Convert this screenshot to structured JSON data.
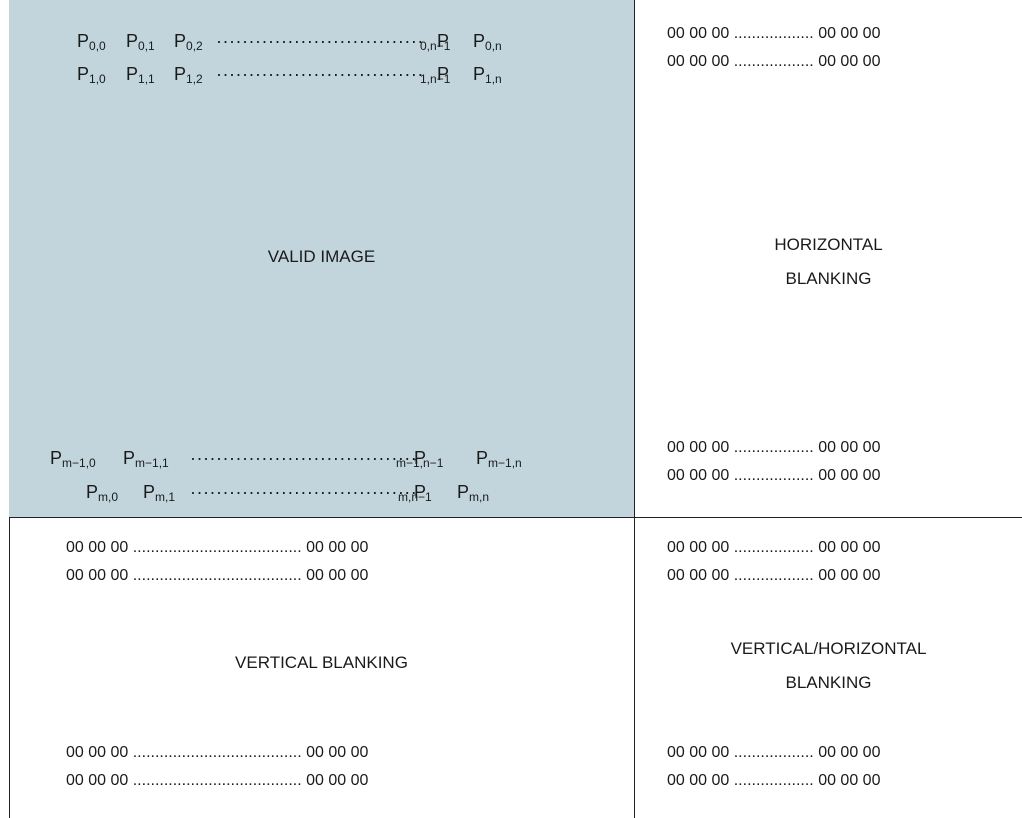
{
  "valid_image": {
    "label": "VALID IMAGE",
    "row0": {
      "p0": "P",
      "s0": "0,0",
      "p1": "P",
      "s1": "0,1",
      "p2": "P",
      "s2": "0,2",
      "pn1": "P",
      "sn1": "0,n−1",
      "pn": "P",
      "sn": "0,n"
    },
    "row1": {
      "p0": "P",
      "s0": "1,0",
      "p1": "P",
      "s1": "1,1",
      "p2": "P",
      "s2": "1,2",
      "pn1": "P",
      "sn1": "1,n−1",
      "pn": "P",
      "sn": "1,n"
    },
    "rowm1": {
      "p0": "P",
      "s0": "m−1,0",
      "p1": "P",
      "s1": "m−1,1",
      "pn1": "P",
      "sn1": "m−1,n−1",
      "pn": "P",
      "sn": "m−1,n"
    },
    "rowm": {
      "p0": "P",
      "s0": "m,0",
      "p1": "P",
      "s1": "m,1",
      "pn1": "P",
      "sn1": "m,n−1",
      "pn": "P",
      "sn": "m,n"
    }
  },
  "horizontal_blanking": {
    "label_line1": "HORIZONTAL",
    "label_line2": "BLANKING",
    "rows": [
      "00 00 00 .................. 00 00 00",
      "00 00 00 .................. 00 00 00",
      "00 00 00 .................. 00 00 00",
      "00 00 00 .................. 00 00 00"
    ]
  },
  "vertical_blanking": {
    "label": "VERTICAL BLANKING",
    "rows": [
      "00 00 00 ...................................... 00 00 00",
      "00 00 00 ...................................... 00 00 00",
      "00 00 00 ...................................... 00 00 00",
      "00 00 00 ...................................... 00 00 00"
    ]
  },
  "vertical_horizontal_blanking": {
    "label_line1": "VERTICAL/HORIZONTAL",
    "label_line2": "BLANKING",
    "rows": [
      "00 00 00 .................. 00 00 00",
      "00 00 00 .................. 00 00 00",
      "00 00 00 .................. 00 00 00",
      "00 00 00 .................. 00 00 00"
    ]
  },
  "colors": {
    "valid_fill": "#c2d4dc",
    "border": "#222222"
  }
}
